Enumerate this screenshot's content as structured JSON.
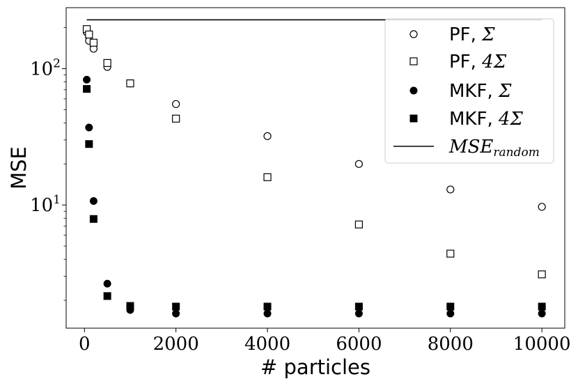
{
  "chart_data": {
    "type": "scatter",
    "xlabel": "# particles",
    "ylabel": "MSE",
    "yscale": "log",
    "xlim": [
      -400,
      10500
    ],
    "ylim": [
      1.25,
      280
    ],
    "x_ticks": [
      {
        "value": 0,
        "label": "0"
      },
      {
        "value": 2000,
        "label": "2000"
      },
      {
        "value": 4000,
        "label": "4000"
      },
      {
        "value": 6000,
        "label": "6000"
      },
      {
        "value": 8000,
        "label": "8000"
      },
      {
        "value": 10000,
        "label": "10000"
      }
    ],
    "y_ticks": [
      {
        "value": 10,
        "base": "10",
        "exp": "1"
      },
      {
        "value": 100,
        "base": "10",
        "exp": "2"
      }
    ],
    "grid": false,
    "legend_position": "top-right",
    "series": [
      {
        "key": "pf-sigma",
        "legend_prefix": "PF, ",
        "legend_math": "Σ",
        "marker": "circle",
        "filled": false,
        "points": [
          {
            "x": 50,
            "y": 185
          },
          {
            "x": 100,
            "y": 160
          },
          {
            "x": 200,
            "y": 140
          },
          {
            "x": 500,
            "y": 103
          },
          {
            "x": 1000,
            "y": 78
          },
          {
            "x": 2000,
            "y": 55
          },
          {
            "x": 4000,
            "y": 32
          },
          {
            "x": 6000,
            "y": 20
          },
          {
            "x": 8000,
            "y": 13
          },
          {
            "x": 10000,
            "y": 9.7
          }
        ]
      },
      {
        "key": "pf-4sigma",
        "legend_prefix": "PF, ",
        "legend_math": "4Σ",
        "marker": "square",
        "filled": false,
        "points": [
          {
            "x": 50,
            "y": 195
          },
          {
            "x": 100,
            "y": 178
          },
          {
            "x": 200,
            "y": 155
          },
          {
            "x": 500,
            "y": 110
          },
          {
            "x": 1000,
            "y": 78
          },
          {
            "x": 2000,
            "y": 43
          },
          {
            "x": 4000,
            "y": 16
          },
          {
            "x": 6000,
            "y": 7.2
          },
          {
            "x": 8000,
            "y": 4.4
          },
          {
            "x": 10000,
            "y": 3.1
          }
        ]
      },
      {
        "key": "mkf-sigma",
        "legend_prefix": "MKF, ",
        "legend_math": "Σ",
        "marker": "circle",
        "filled": true,
        "points": [
          {
            "x": 50,
            "y": 83
          },
          {
            "x": 100,
            "y": 37
          },
          {
            "x": 200,
            "y": 10.7
          },
          {
            "x": 500,
            "y": 2.65
          },
          {
            "x": 1000,
            "y": 1.7
          },
          {
            "x": 2000,
            "y": 1.6
          },
          {
            "x": 4000,
            "y": 1.6
          },
          {
            "x": 6000,
            "y": 1.6
          },
          {
            "x": 8000,
            "y": 1.6
          },
          {
            "x": 10000,
            "y": 1.6
          }
        ]
      },
      {
        "key": "mkf-4sigma",
        "legend_prefix": "MKF, ",
        "legend_math": "4Σ",
        "marker": "square",
        "filled": true,
        "points": [
          {
            "x": 50,
            "y": 71
          },
          {
            "x": 100,
            "y": 28
          },
          {
            "x": 200,
            "y": 7.9
          },
          {
            "x": 500,
            "y": 2.15
          },
          {
            "x": 1000,
            "y": 1.82
          },
          {
            "x": 2000,
            "y": 1.8
          },
          {
            "x": 4000,
            "y": 1.8
          },
          {
            "x": 6000,
            "y": 1.8
          },
          {
            "x": 8000,
            "y": 1.8
          },
          {
            "x": 10000,
            "y": 1.8
          }
        ]
      }
    ],
    "reference_line": {
      "key": "mse-random",
      "legend_main": "MSE",
      "legend_sub": "random",
      "y": 228,
      "x_range": [
        50,
        10000
      ]
    }
  }
}
